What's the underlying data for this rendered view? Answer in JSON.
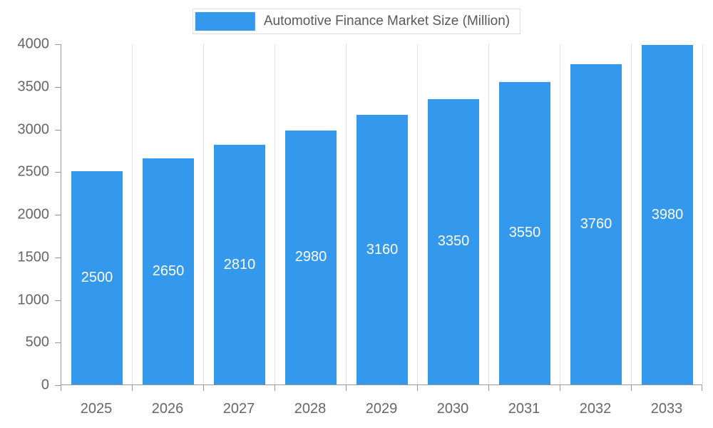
{
  "legend": {
    "label": "Automotive Finance Market Size (Million)"
  },
  "chart_data": {
    "type": "bar",
    "categories": [
      "2025",
      "2026",
      "2027",
      "2028",
      "2029",
      "2030",
      "2031",
      "2032",
      "2033"
    ],
    "values": [
      2500,
      2650,
      2810,
      2980,
      3160,
      3350,
      3550,
      3760,
      3980
    ],
    "title": "Automotive Finance Market Size (Million)",
    "xlabel": "",
    "ylabel": "",
    "ylim": [
      0,
      4000
    ],
    "ytick_step": 500,
    "grid": "vertical-splitlines",
    "legend_position": "top",
    "bar_color": "#3498ec",
    "bar_label_color": "#ffffff",
    "axis_text_color": "#666666",
    "axis_line_color": "#999999",
    "gridline_color": "#e2e2e2"
  }
}
